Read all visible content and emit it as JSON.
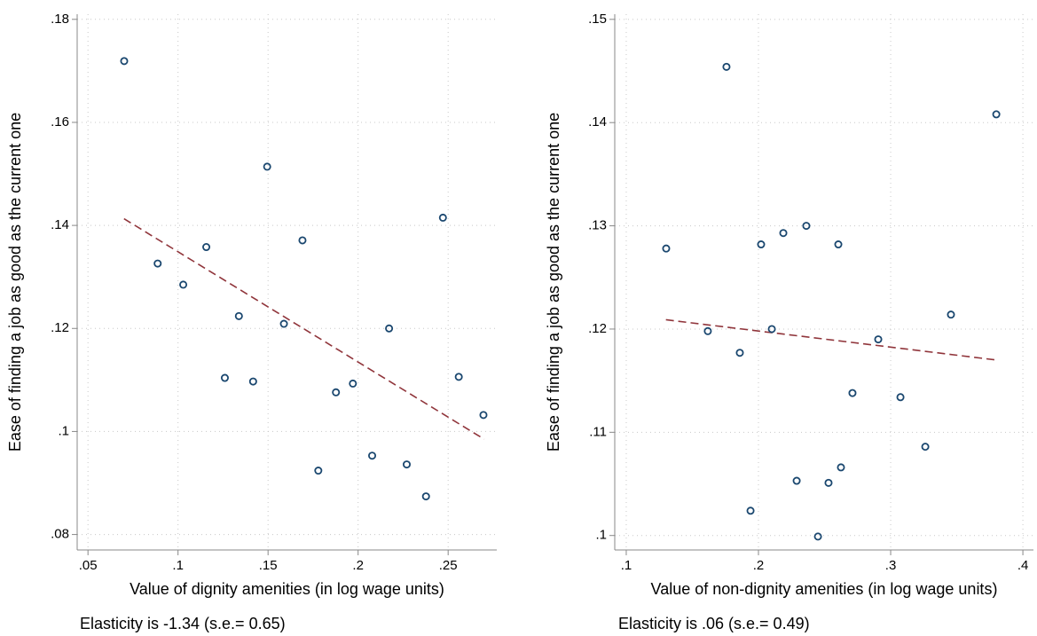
{
  "chart_data": [
    {
      "type": "scatter",
      "xlabel": "Value of dignity amenities (in log wage units)",
      "ylabel": "Ease of finding a job as good as the current one",
      "note": "Elasticity is -1.34 (s.e.=  0.65)",
      "xlim": [
        0.044,
        0.277
      ],
      "ylim": [
        0.077,
        0.181
      ],
      "xticks": [
        {
          "value": 0.05,
          "label": ".05"
        },
        {
          "value": 0.1,
          "label": ".1"
        },
        {
          "value": 0.15,
          "label": ".15"
        },
        {
          "value": 0.2,
          "label": ".2"
        },
        {
          "value": 0.25,
          "label": ".25"
        }
      ],
      "yticks": [
        {
          "value": 0.08,
          "label": ".08"
        },
        {
          "value": 0.1,
          "label": ".1"
        },
        {
          "value": 0.12,
          "label": ".12"
        },
        {
          "value": 0.14,
          "label": ".14"
        },
        {
          "value": 0.16,
          "label": ".16"
        },
        {
          "value": 0.18,
          "label": ".18"
        }
      ],
      "grid": true,
      "series": [
        {
          "color": "#1a476f",
          "x": [
            0.0701,
            0.0887,
            0.1029,
            0.1157,
            0.126,
            0.1338,
            0.1417,
            0.1495,
            0.1588,
            0.1691,
            0.1779,
            0.1877,
            0.1971,
            0.2078,
            0.2172,
            0.227,
            0.2377,
            0.2471,
            0.2559,
            0.2696
          ],
          "values": [
            0.1719,
            0.1326,
            0.1285,
            0.1358,
            0.1104,
            0.1224,
            0.1097,
            0.1514,
            0.1209,
            0.1371,
            0.0924,
            0.1076,
            0.1093,
            0.0953,
            0.12,
            0.0936,
            0.0874,
            0.1415,
            0.1106,
            0.1032
          ]
        }
      ],
      "fit": {
        "color": "#90353b",
        "x": [
          0.07,
          0.27
        ],
        "values": [
          0.1413,
          0.0985
        ]
      }
    },
    {
      "type": "scatter",
      "xlabel": "Value of non-dignity amenities (in log wage units)",
      "ylabel": "Ease of finding a job as good as the current one",
      "note": "Elasticity is .06 (s.e.=  0.49)",
      "xlim": [
        0.0913,
        0.408
      ],
      "ylim": [
        0.0986,
        0.1505
      ],
      "xticks": [
        {
          "value": 0.1,
          "label": ".1"
        },
        {
          "value": 0.2,
          "label": ".2"
        },
        {
          "value": 0.3,
          "label": ".3"
        },
        {
          "value": 0.4,
          "label": ".4"
        }
      ],
      "yticks": [
        {
          "value": 0.1,
          "label": ".1"
        },
        {
          "value": 0.11,
          "label": ".11"
        },
        {
          "value": 0.12,
          "label": ".12"
        },
        {
          "value": 0.13,
          "label": ".13"
        },
        {
          "value": 0.14,
          "label": ".14"
        },
        {
          "value": 0.15,
          "label": ".15"
        }
      ],
      "grid": true,
      "series": [
        {
          "color": "#1a476f",
          "x": [
            0.1302,
            0.1617,
            0.1758,
            0.1859,
            0.194,
            0.202,
            0.2101,
            0.2188,
            0.2289,
            0.2362,
            0.245,
            0.253,
            0.2604,
            0.2624,
            0.2711,
            0.2906,
            0.3074,
            0.3262,
            0.3456,
            0.3799
          ],
          "values": [
            0.1278,
            0.1198,
            0.1454,
            0.1177,
            0.1024,
            0.1282,
            0.12,
            0.1293,
            0.1053,
            0.13,
            0.0999,
            0.1051,
            0.1282,
            0.1066,
            0.1138,
            0.119,
            0.1134,
            0.1086,
            0.1214,
            0.1408
          ]
        }
      ],
      "fit": {
        "color": "#90353b",
        "x": [
          0.13,
          0.38
        ],
        "values": [
          0.1209,
          0.117
        ]
      }
    }
  ]
}
